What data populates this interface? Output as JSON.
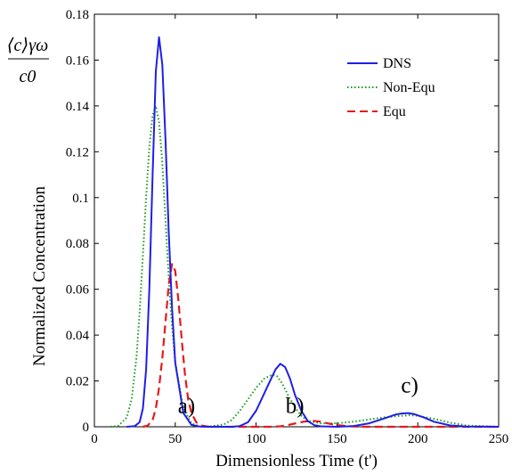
{
  "chart_data": {
    "type": "line",
    "xlabel": "Dimensionless Time (t')",
    "ylabel": "Normalized Concentration",
    "ylabel_fraction": {
      "numerator": "⟨c⟩γω",
      "denominator": "c0"
    },
    "xlim": [
      0,
      250
    ],
    "ylim": [
      0,
      0.18
    ],
    "xticks": [
      0,
      50,
      100,
      150,
      200,
      250
    ],
    "yticks": [
      0,
      0.02,
      0.04,
      0.06,
      0.08,
      0.1,
      0.12,
      0.14,
      0.16,
      0.18
    ],
    "ytick_labels": [
      "0",
      "0.02",
      "0.04",
      "0.06",
      "0.08",
      "0.1",
      "0.12",
      "0.14",
      "0.16",
      "0.18"
    ],
    "grid": false,
    "legend_position": "top-right",
    "series": [
      {
        "name": "DNS",
        "color": "#1f1fe6",
        "dash": "solid",
        "x": [
          20,
          25,
          28,
          30,
          32,
          34,
          36,
          38,
          40,
          42,
          44,
          46,
          48,
          50,
          55,
          60,
          65,
          70,
          75,
          80,
          85,
          90,
          95,
          100,
          104,
          108,
          112,
          115,
          118,
          121,
          124,
          128,
          132,
          136,
          140,
          150,
          160,
          170,
          180,
          186,
          190,
          194,
          198,
          204,
          210,
          220,
          230,
          250
        ],
        "y": [
          0,
          0.0003,
          0.002,
          0.008,
          0.025,
          0.06,
          0.11,
          0.155,
          0.17,
          0.158,
          0.125,
          0.085,
          0.052,
          0.028,
          0.006,
          0.0008,
          0.0001,
          0,
          0,
          0,
          0,
          0.0003,
          0.002,
          0.007,
          0.013,
          0.019,
          0.025,
          0.0275,
          0.026,
          0.021,
          0.014,
          0.007,
          0.0025,
          0.0007,
          0.0002,
          0,
          0.0003,
          0.0015,
          0.0038,
          0.0053,
          0.0058,
          0.006,
          0.0055,
          0.004,
          0.0022,
          0.0006,
          0.0001,
          0
        ]
      },
      {
        "name": "Non-Equ",
        "color": "#1a9a1a",
        "dash": "dotted",
        "x": [
          10,
          15,
          20,
          23,
          26,
          28,
          30,
          32,
          34,
          36,
          38,
          40,
          42,
          44,
          46,
          48,
          50,
          55,
          60,
          65,
          70,
          80,
          85,
          90,
          95,
          100,
          105,
          110,
          113,
          116,
          120,
          124,
          128,
          132,
          140,
          150,
          160,
          170,
          180,
          190,
          195,
          200,
          210,
          220,
          230,
          250
        ],
        "y": [
          0,
          0.0005,
          0.004,
          0.012,
          0.03,
          0.05,
          0.075,
          0.1,
          0.122,
          0.136,
          0.14,
          0.133,
          0.115,
          0.09,
          0.065,
          0.044,
          0.028,
          0.008,
          0.0015,
          0.0002,
          0,
          0.001,
          0.003,
          0.007,
          0.012,
          0.017,
          0.021,
          0.0228,
          0.022,
          0.019,
          0.0135,
          0.0085,
          0.0048,
          0.0026,
          0.0015,
          0.0015,
          0.0022,
          0.0032,
          0.0042,
          0.0048,
          0.005,
          0.0048,
          0.0035,
          0.0018,
          0.0006,
          0
        ]
      },
      {
        "name": "Equ",
        "color": "#e61a1a",
        "dash": "dashed",
        "x": [
          30,
          33,
          36,
          38,
          40,
          42,
          44,
          46,
          48,
          50,
          52,
          54,
          56,
          58,
          60,
          63,
          66,
          70,
          80,
          100,
          110,
          115,
          120,
          125,
          130,
          135,
          140,
          145,
          150,
          160,
          170,
          180,
          190,
          200,
          250
        ],
        "y": [
          0,
          0.0005,
          0.003,
          0.008,
          0.017,
          0.03,
          0.046,
          0.062,
          0.071,
          0.068,
          0.055,
          0.038,
          0.023,
          0.012,
          0.006,
          0.002,
          0.0006,
          0.0001,
          0,
          0,
          0,
          0.0002,
          0.0008,
          0.0016,
          0.0023,
          0.0026,
          0.0022,
          0.0014,
          0.0007,
          0.0001,
          0,
          0,
          0,
          0,
          0
        ]
      }
    ],
    "annotations": [
      {
        "text": "a)",
        "x": 57,
        "y": 0.006
      },
      {
        "text": "b)",
        "x": 124,
        "y": 0.006
      },
      {
        "text": "c)",
        "x": 195,
        "y": 0.015
      }
    ]
  }
}
